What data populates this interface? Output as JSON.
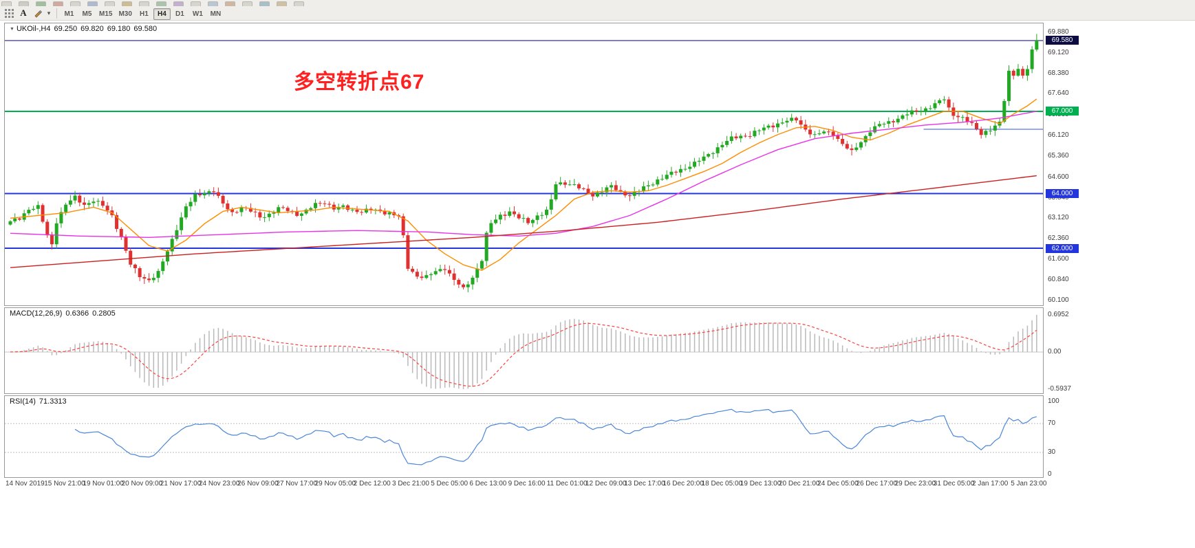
{
  "toolbar": {
    "text_tool_label": "A",
    "timeframes": {
      "items": [
        "M1",
        "M5",
        "M15",
        "M30",
        "H1",
        "H4",
        "D1",
        "W1",
        "MN"
      ],
      "active": "H4"
    }
  },
  "main_chart": {
    "header": {
      "collapse_icon": "▼",
      "symbol": "UKOil-,H4",
      "open": "69.250",
      "high": "69.820",
      "low": "69.180",
      "close": "69.580"
    },
    "annotation": {
      "text": "多空转折点67",
      "color": "#ff2020"
    },
    "price_axis_labels": [
      "69.880",
      "69.120",
      "68.380",
      "67.640",
      "66.860",
      "66.120",
      "65.360",
      "64.600",
      "63.840",
      "63.120",
      "62.360",
      "61.600",
      "60.840",
      "60.100"
    ]
  },
  "macd_panel": {
    "title": "MACD(12,26,9)",
    "macd_value": "0.6366",
    "signal_value": "0.2805",
    "scale": {
      "top": "0.6952",
      "zero": "0.00",
      "bottom": "-0.5937"
    }
  },
  "rsi_panel": {
    "title": "RSI(14)",
    "value": "71.3313",
    "scale": [
      "100",
      "70",
      "30",
      "0"
    ]
  },
  "time_axis": {
    "labels": [
      "14 Nov 2019",
      "15 Nov 21:00",
      "19 Nov 01:00",
      "20 Nov 09:00",
      "21 Nov 17:00",
      "24 Nov 23:00",
      "26 Nov 09:00",
      "27 Nov 17:00",
      "29 Nov 05:00",
      "2 Dec 12:00",
      "3 Dec 21:00",
      "5 Dec 05:00",
      "6 Dec 13:00",
      "9 Dec 16:00",
      "11 Dec 01:00",
      "12 Dec 09:00",
      "13 Dec 17:00",
      "16 Dec 20:00",
      "18 Dec 05:00",
      "19 Dec 13:00",
      "20 Dec 21:00",
      "24 Dec 05:00",
      "26 Dec 17:00",
      "29 Dec 23:00",
      "31 Dec 05:00",
      "2 Jan 17:00",
      "5 Jan 23:00"
    ]
  },
  "chart_data": {
    "type": "candlestick",
    "symbol": "UKOil-",
    "timeframe": "H4",
    "current_bar": {
      "open": 69.25,
      "high": 69.82,
      "low": 69.18,
      "close": 69.58
    },
    "price_range": [
      60.1,
      69.88
    ],
    "candle_count": 223,
    "up_color": "#22a822",
    "down_color": "#e03131",
    "close_waypoints": [
      [
        0,
        62.95
      ],
      [
        2,
        63.1
      ],
      [
        4,
        63.45
      ],
      [
        6,
        63.5
      ],
      [
        8,
        62.45
      ],
      [
        9,
        62.15
      ],
      [
        10,
        63.0
      ],
      [
        12,
        63.6
      ],
      [
        14,
        63.85
      ],
      [
        16,
        63.6
      ],
      [
        18,
        63.75
      ],
      [
        20,
        63.55
      ],
      [
        22,
        63.2
      ],
      [
        24,
        62.4
      ],
      [
        26,
        61.4
      ],
      [
        28,
        61.0
      ],
      [
        30,
        60.85
      ],
      [
        32,
        61.1
      ],
      [
        34,
        61.9
      ],
      [
        36,
        62.75
      ],
      [
        38,
        63.5
      ],
      [
        40,
        63.9
      ],
      [
        42,
        64.05
      ],
      [
        44,
        64.1
      ],
      [
        46,
        63.6
      ],
      [
        48,
        63.3
      ],
      [
        50,
        63.5
      ],
      [
        52,
        63.35
      ],
      [
        54,
        63.15
      ],
      [
        56,
        63.25
      ],
      [
        58,
        63.45
      ],
      [
        60,
        63.4
      ],
      [
        62,
        63.25
      ],
      [
        64,
        63.35
      ],
      [
        66,
        63.6
      ],
      [
        68,
        63.7
      ],
      [
        70,
        63.45
      ],
      [
        72,
        63.5
      ],
      [
        74,
        63.4
      ],
      [
        76,
        63.35
      ],
      [
        78,
        63.4
      ],
      [
        80,
        63.35
      ],
      [
        82,
        63.3
      ],
      [
        84,
        63.15
      ],
      [
        85,
        62.4
      ],
      [
        86,
        61.3
      ],
      [
        88,
        61.0
      ],
      [
        90,
        60.95
      ],
      [
        92,
        61.15
      ],
      [
        94,
        61.3
      ],
      [
        96,
        60.85
      ],
      [
        98,
        60.5
      ],
      [
        100,
        60.95
      ],
      [
        102,
        61.6
      ],
      [
        103,
        62.5
      ],
      [
        104,
        62.9
      ],
      [
        106,
        63.2
      ],
      [
        108,
        63.35
      ],
      [
        110,
        63.1
      ],
      [
        112,
        62.95
      ],
      [
        114,
        63.2
      ],
      [
        116,
        63.35
      ],
      [
        117,
        63.75
      ],
      [
        118,
        64.35
      ],
      [
        120,
        64.4
      ],
      [
        122,
        64.3
      ],
      [
        124,
        64.1
      ],
      [
        126,
        63.95
      ],
      [
        128,
        64.1
      ],
      [
        130,
        64.25
      ],
      [
        132,
        64.05
      ],
      [
        134,
        63.95
      ],
      [
        136,
        64.1
      ],
      [
        138,
        64.3
      ],
      [
        140,
        64.5
      ],
      [
        142,
        64.65
      ],
      [
        144,
        64.8
      ],
      [
        146,
        64.95
      ],
      [
        148,
        65.1
      ],
      [
        150,
        65.3
      ],
      [
        152,
        65.55
      ],
      [
        154,
        65.8
      ],
      [
        156,
        66.0
      ],
      [
        158,
        66.1
      ],
      [
        160,
        66.15
      ],
      [
        162,
        66.3
      ],
      [
        164,
        66.45
      ],
      [
        166,
        66.55
      ],
      [
        168,
        66.65
      ],
      [
        170,
        66.7
      ],
      [
        172,
        66.35
      ],
      [
        174,
        66.1
      ],
      [
        176,
        66.25
      ],
      [
        178,
        66.2
      ],
      [
        180,
        65.8
      ],
      [
        182,
        65.5
      ],
      [
        184,
        65.9
      ],
      [
        186,
        66.3
      ],
      [
        188,
        66.5
      ],
      [
        190,
        66.6
      ],
      [
        192,
        66.75
      ],
      [
        194,
        66.9
      ],
      [
        196,
        67.0
      ],
      [
        198,
        67.1
      ],
      [
        200,
        67.25
      ],
      [
        202,
        67.45
      ],
      [
        203,
        67.1
      ],
      [
        204,
        66.9
      ],
      [
        206,
        66.75
      ],
      [
        208,
        66.5
      ],
      [
        210,
        66.2
      ],
      [
        212,
        66.35
      ],
      [
        214,
        66.55
      ],
      [
        215,
        67.4
      ],
      [
        216,
        68.45
      ],
      [
        217,
        68.35
      ],
      [
        218,
        68.6
      ],
      [
        219,
        68.25
      ],
      [
        220,
        68.55
      ],
      [
        221,
        69.2
      ],
      [
        222,
        69.58
      ]
    ],
    "horizontal_levels": [
      {
        "price": 69.58,
        "label": "69.580",
        "line_color": "#000066",
        "badge_color": "#0c0c42",
        "width": 1
      },
      {
        "price": 67.0,
        "label": "67.000",
        "line_color": "#00b050",
        "badge_color": "#00b050",
        "width": 2
      },
      {
        "price": 64.0,
        "label": "64.000",
        "line_color": "#2336dd",
        "badge_color": "#2336dd",
        "width": 2
      },
      {
        "price": 62.0,
        "label": "62.000",
        "line_color": "#2336dd",
        "badge_color": "#2336dd",
        "width": 2
      }
    ],
    "segment": {
      "price": 66.35,
      "from": 0.885,
      "to": 1.0,
      "color": "#3050e8"
    },
    "moving_averages": [
      {
        "name": "fast",
        "color": "#ff8c00",
        "points": [
          [
            0,
            63.1
          ],
          [
            6,
            63.2
          ],
          [
            12,
            63.3
          ],
          [
            18,
            63.5
          ],
          [
            22,
            63.3
          ],
          [
            26,
            62.7
          ],
          [
            30,
            62.1
          ],
          [
            34,
            61.9
          ],
          [
            38,
            62.3
          ],
          [
            42,
            62.9
          ],
          [
            46,
            63.35
          ],
          [
            50,
            63.5
          ],
          [
            54,
            63.4
          ],
          [
            58,
            63.3
          ],
          [
            62,
            63.35
          ],
          [
            66,
            63.4
          ],
          [
            70,
            63.5
          ],
          [
            74,
            63.45
          ],
          [
            78,
            63.4
          ],
          [
            82,
            63.35
          ],
          [
            86,
            63.0
          ],
          [
            90,
            62.3
          ],
          [
            94,
            61.8
          ],
          [
            98,
            61.4
          ],
          [
            102,
            61.2
          ],
          [
            106,
            61.6
          ],
          [
            110,
            62.2
          ],
          [
            114,
            62.7
          ],
          [
            118,
            63.2
          ],
          [
            122,
            63.8
          ],
          [
            126,
            64.05
          ],
          [
            130,
            64.1
          ],
          [
            134,
            64.05
          ],
          [
            138,
            64.1
          ],
          [
            142,
            64.3
          ],
          [
            146,
            64.55
          ],
          [
            150,
            64.8
          ],
          [
            154,
            65.1
          ],
          [
            158,
            65.5
          ],
          [
            162,
            65.85
          ],
          [
            166,
            66.15
          ],
          [
            170,
            66.4
          ],
          [
            174,
            66.45
          ],
          [
            178,
            66.3
          ],
          [
            182,
            66.05
          ],
          [
            186,
            65.95
          ],
          [
            190,
            66.2
          ],
          [
            194,
            66.5
          ],
          [
            198,
            66.75
          ],
          [
            202,
            67.0
          ],
          [
            206,
            67.0
          ],
          [
            210,
            66.75
          ],
          [
            214,
            66.55
          ],
          [
            217,
            66.9
          ],
          [
            220,
            67.2
          ],
          [
            222,
            67.45
          ]
        ]
      },
      {
        "name": "medium",
        "color": "#e832e8",
        "points": [
          [
            0,
            62.55
          ],
          [
            15,
            62.45
          ],
          [
            30,
            62.4
          ],
          [
            45,
            62.5
          ],
          [
            60,
            62.6
          ],
          [
            75,
            62.65
          ],
          [
            90,
            62.6
          ],
          [
            100,
            62.5
          ],
          [
            110,
            62.45
          ],
          [
            118,
            62.55
          ],
          [
            126,
            62.8
          ],
          [
            134,
            63.2
          ],
          [
            142,
            63.8
          ],
          [
            150,
            64.45
          ],
          [
            158,
            65.05
          ],
          [
            166,
            65.6
          ],
          [
            174,
            66.0
          ],
          [
            182,
            66.2
          ],
          [
            190,
            66.35
          ],
          [
            198,
            66.5
          ],
          [
            206,
            66.6
          ],
          [
            214,
            66.75
          ],
          [
            222,
            67.0
          ]
        ]
      },
      {
        "name": "slow",
        "color": "#cc1f1f",
        "points": [
          [
            0,
            61.3
          ],
          [
            20,
            61.55
          ],
          [
            40,
            61.8
          ],
          [
            60,
            62.0
          ],
          [
            80,
            62.2
          ],
          [
            100,
            62.4
          ],
          [
            120,
            62.65
          ],
          [
            140,
            62.95
          ],
          [
            160,
            63.35
          ],
          [
            180,
            63.8
          ],
          [
            200,
            64.2
          ],
          [
            222,
            64.65
          ]
        ]
      }
    ],
    "indicators": [
      {
        "type": "MACD",
        "fast": 12,
        "slow": 26,
        "signal": 9,
        "current_macd": 0.6366,
        "current_signal": 0.2805,
        "display_range": [
          -0.5937,
          0.6952
        ],
        "histogram_color": "#b9b9b9",
        "signal_color": "#ff4040"
      },
      {
        "type": "RSI",
        "period": 14,
        "current": 71.3313,
        "range": [
          0,
          100
        ],
        "levels": [
          30,
          70
        ],
        "line_color": "#4a86d8"
      }
    ]
  }
}
